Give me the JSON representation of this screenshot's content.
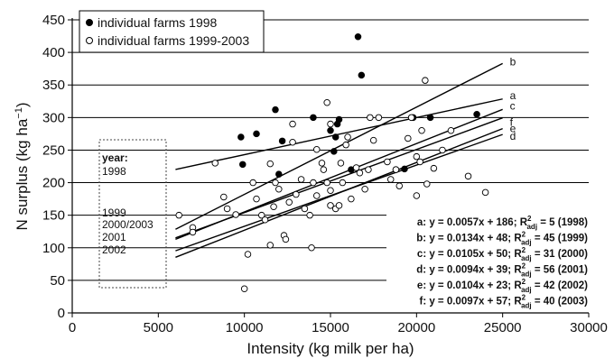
{
  "chart_data": {
    "type": "scatter",
    "xlabel": "Intensity (kg milk per ha)",
    "ylabel": "N surplus (kg ha",
    "ylabel_sup": "−1",
    "ylabel_close": ")",
    "xlim": [
      0,
      30000
    ],
    "ylim": [
      0,
      450
    ],
    "x_ticks": [
      0,
      5000,
      10000,
      15000,
      20000,
      25000,
      30000
    ],
    "y_ticks": [
      0,
      50,
      100,
      150,
      200,
      250,
      300,
      350,
      400,
      450
    ],
    "grid": "horizontal",
    "legend_position": "top-left",
    "series": [
      {
        "name": "individual farms 1998",
        "marker": "filled-circle",
        "color": "#000000",
        "points": [
          [
            9800,
            270
          ],
          [
            9900,
            228
          ],
          [
            10700,
            275
          ],
          [
            11800,
            312
          ],
          [
            12200,
            264
          ],
          [
            12000,
            213
          ],
          [
            14000,
            300
          ],
          [
            15000,
            280
          ],
          [
            15300,
            270
          ],
          [
            15400,
            290
          ],
          [
            15500,
            297
          ],
          [
            15200,
            248
          ],
          [
            16600,
            424
          ],
          [
            16800,
            365
          ],
          [
            16200,
            220
          ],
          [
            18800,
            220
          ],
          [
            19300,
            221
          ],
          [
            19800,
            300
          ],
          [
            20800,
            300
          ],
          [
            23500,
            305
          ]
        ]
      },
      {
        "name": "individual farms 1999-2003",
        "marker": "open-circle",
        "color": "#000000",
        "points": [
          [
            6200,
            150
          ],
          [
            7000,
            131
          ],
          [
            7000,
            124
          ],
          [
            8300,
            230
          ],
          [
            8800,
            178
          ],
          [
            9000,
            160
          ],
          [
            9500,
            151
          ],
          [
            10000,
            37
          ],
          [
            10200,
            90
          ],
          [
            10500,
            200
          ],
          [
            10700,
            175
          ],
          [
            11000,
            150
          ],
          [
            11200,
            143
          ],
          [
            11500,
            104
          ],
          [
            11700,
            163
          ],
          [
            11500,
            229
          ],
          [
            11800,
            200
          ],
          [
            12000,
            190
          ],
          [
            12300,
            119
          ],
          [
            12400,
            113
          ],
          [
            12600,
            170
          ],
          [
            12800,
            262
          ],
          [
            12800,
            290
          ],
          [
            13000,
            182
          ],
          [
            13300,
            205
          ],
          [
            13500,
            160
          ],
          [
            13800,
            150
          ],
          [
            13900,
            100
          ],
          [
            14000,
            200
          ],
          [
            14200,
            180
          ],
          [
            14200,
            251
          ],
          [
            14500,
            230
          ],
          [
            14600,
            220
          ],
          [
            14800,
            200
          ],
          [
            15000,
            165
          ],
          [
            15000,
            188
          ],
          [
            15300,
            160
          ],
          [
            15500,
            165
          ],
          [
            15600,
            230
          ],
          [
            15700,
            200
          ],
          [
            15900,
            258
          ],
          [
            16000,
            270
          ],
          [
            16200,
            175
          ],
          [
            14800,
            323
          ],
          [
            15000,
            290
          ],
          [
            16500,
            223
          ],
          [
            16700,
            215
          ],
          [
            17000,
            190
          ],
          [
            17200,
            220
          ],
          [
            17500,
            265
          ],
          [
            17300,
            300
          ],
          [
            17800,
            300
          ],
          [
            18300,
            232
          ],
          [
            18500,
            205
          ],
          [
            18800,
            220
          ],
          [
            19000,
            195
          ],
          [
            19500,
            268
          ],
          [
            19700,
            300
          ],
          [
            20000,
            180
          ],
          [
            20000,
            240
          ],
          [
            20200,
            232
          ],
          [
            20300,
            280
          ],
          [
            20600,
            198
          ],
          [
            20500,
            357
          ],
          [
            21000,
            222
          ],
          [
            21500,
            250
          ],
          [
            22000,
            280
          ],
          [
            23000,
            210
          ],
          [
            24000,
            185
          ]
        ]
      }
    ],
    "regression_lines": [
      {
        "id": "a",
        "slope": 0.0057,
        "intercept": 186,
        "x_range": [
          6000,
          25000
        ],
        "equation": "a: y = 0.0057x + 186; R",
        "r2_sub": "adj",
        "r2_value": " = 5 (1998)"
      },
      {
        "id": "b",
        "slope": 0.0134,
        "intercept": 48,
        "x_range": [
          6000,
          25000
        ],
        "equation": "b: y = 0.0134x + 48; R",
        "r2_sub": "adj",
        "r2_value": " = 45 (1999)"
      },
      {
        "id": "c",
        "slope": 0.0105,
        "intercept": 50,
        "x_range": [
          6000,
          25000
        ],
        "equation": "c: y = 0.0105x + 50; R",
        "r2_sub": "adj",
        "r2_value": " = 31 (2000)"
      },
      {
        "id": "d",
        "slope": 0.0094,
        "intercept": 39,
        "x_range": [
          6000,
          25000
        ],
        "equation": "d: y = 0.0094x + 39; R",
        "r2_sub": "adj",
        "r2_value": " = 56 (2001)"
      },
      {
        "id": "e",
        "slope": 0.0104,
        "intercept": 23,
        "x_range": [
          6000,
          25000
        ],
        "equation": "e: y = 0.0104x + 23; R",
        "r2_sub": "adj",
        "r2_value": " = 42 (2002)"
      },
      {
        "id": "f",
        "slope": 0.0097,
        "intercept": 57,
        "x_range": [
          6000,
          25000
        ],
        "equation": "f: y = 0.0097x + 57; R",
        "r2_sub": "adj",
        "r2_value": " = 40 (2003)"
      }
    ],
    "year_box": {
      "title": "year:",
      "lines": [
        "1998",
        "1999",
        "2000/2003",
        "2001",
        "2002"
      ]
    }
  }
}
